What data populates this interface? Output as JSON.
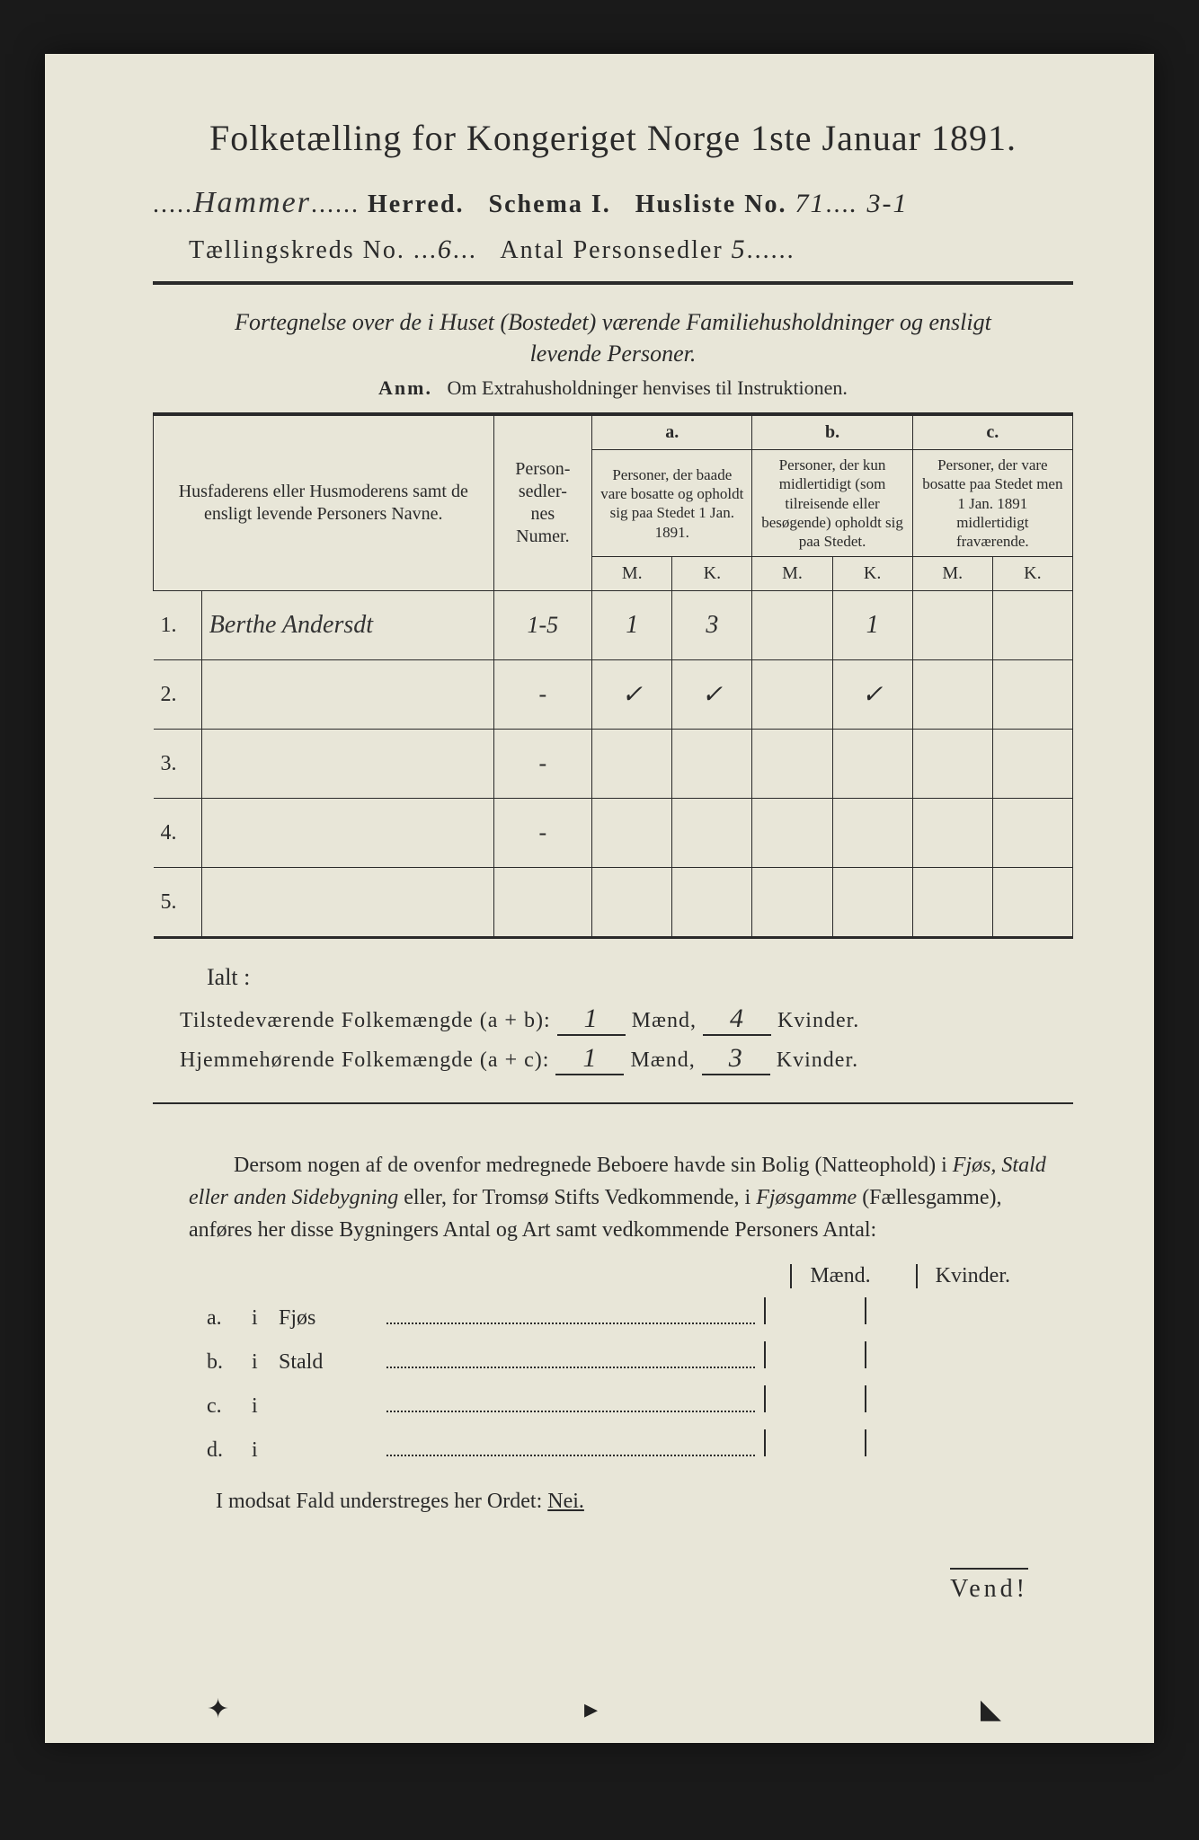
{
  "title": "Folketælling for Kongeriget Norge 1ste Januar 1891.",
  "header": {
    "herred_hand": "Hammer",
    "herred_label": "Herred.",
    "schema": "Schema I.",
    "husliste_label": "Husliste No.",
    "husliste_no": "71",
    "husliste_suffix": ". 3-1",
    "kreds_label": "Tællingskreds No.",
    "kreds_no": "6",
    "antal_label": "Antal Personsedler",
    "antal_no": "5"
  },
  "subtitle": "Fortegnelse over de i Huset (Bostedet) værende Familiehusholdninger og ensligt levende Personer.",
  "anm_label": "Anm.",
  "anm_text": "Om Extrahusholdninger henvises til Instruktionen.",
  "table": {
    "col_name": "Husfaderens eller Husmoderens samt de ensligt levende Personers Navne.",
    "col_pnum": "Person-\nsedler-\nnes\nNumer.",
    "col_a_head": "a.",
    "col_a": "Personer, der baade vare bosatte og opholdt sig paa Stedet 1 Jan. 1891.",
    "col_b_head": "b.",
    "col_b": "Personer, der kun midlertidigt (som tilreisende eller besøgende) opholdt sig paa Stedet.",
    "col_c_head": "c.",
    "col_c": "Personer, der vare bosatte paa Stedet men 1 Jan. 1891 midlertidigt fraværende.",
    "m": "M.",
    "k": "K.",
    "rows": [
      {
        "n": "1.",
        "name": "Berthe Andersdt",
        "pnum": "1-5",
        "am": "1",
        "ak": "3",
        "bm": "",
        "bk": "1",
        "cm": "",
        "ck": ""
      },
      {
        "n": "2.",
        "name": "",
        "pnum": "-",
        "am": "✓",
        "ak": "✓",
        "bm": "",
        "bk": "✓",
        "cm": "",
        "ck": ""
      },
      {
        "n": "3.",
        "name": "",
        "pnum": "-",
        "am": "",
        "ak": "",
        "bm": "",
        "bk": "",
        "cm": "",
        "ck": ""
      },
      {
        "n": "4.",
        "name": "",
        "pnum": "-",
        "am": "",
        "ak": "",
        "bm": "",
        "bk": "",
        "cm": "",
        "ck": ""
      },
      {
        "n": "5.",
        "name": "",
        "pnum": "",
        "am": "",
        "ak": "",
        "bm": "",
        "bk": "",
        "cm": "",
        "ck": ""
      }
    ]
  },
  "ialt": "Ialt :",
  "sums": {
    "line1_label": "Tilstedeværende Folkemængde (a + b):",
    "line1_m": "1",
    "line1_k": "4",
    "line2_label": "Hjemmehørende Folkemængde (a + c):",
    "line2_m": "1",
    "line2_k": "3",
    "maend": "Mænd,",
    "kvinder": "Kvinder."
  },
  "para": {
    "t1": "Dersom nogen af de ovenfor medregnede Beboere havde sin Bolig (Natteophold) i ",
    "i1": "Fjøs, Stald eller anden Sidebygning",
    "t2": " eller, for Tromsø Stifts Vedkommende, i ",
    "i2": "Fjøsgamme",
    "t3": " (Fællesgamme), anføres her disse Bygningers Antal og Art samt vedkommende Personers Antal:"
  },
  "mk": {
    "maend": "Mænd.",
    "kvinder": "Kvinder."
  },
  "abcd": [
    {
      "lab": "a.",
      "i": "i",
      "type": "Fjøs"
    },
    {
      "lab": "b.",
      "i": "i",
      "type": "Stald"
    },
    {
      "lab": "c.",
      "i": "i",
      "type": ""
    },
    {
      "lab": "d.",
      "i": "i",
      "type": ""
    }
  ],
  "nei": {
    "pre": "I modsat Fald understreges her Ordet: ",
    "word": "Nei."
  },
  "vend": "Vend!"
}
